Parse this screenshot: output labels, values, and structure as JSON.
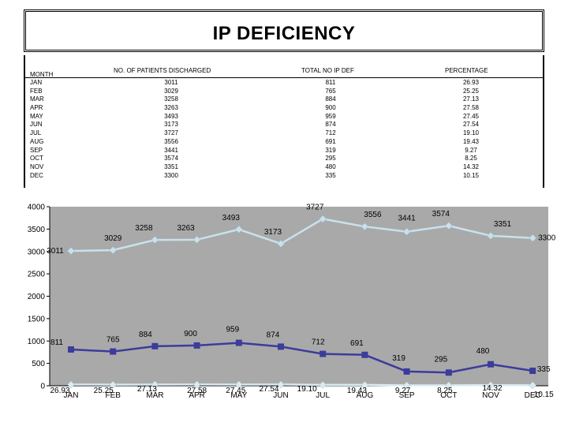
{
  "title": "IP DEFICIENCY",
  "table": {
    "headers": {
      "month": "MONTH",
      "patients": "NO. OF PATIENTS DISCHARGED",
      "ip_def": "TOTAL NO IP DEF",
      "percentage": "PERCENTAGE"
    },
    "rows": [
      {
        "month": "JAN",
        "patients": "3011",
        "ip_def": "811",
        "percentage": "26.93"
      },
      {
        "month": "FEB",
        "patients": "3029",
        "ip_def": "765",
        "percentage": "25.25"
      },
      {
        "month": "MAR",
        "patients": "3258",
        "ip_def": "884",
        "percentage": "27.13"
      },
      {
        "month": "APR",
        "patients": "3263",
        "ip_def": "900",
        "percentage": "27.58"
      },
      {
        "month": "MAY",
        "patients": "3493",
        "ip_def": "959",
        "percentage": "27.45"
      },
      {
        "month": "JUN",
        "patients": "3173",
        "ip_def": "874",
        "percentage": "27.54"
      },
      {
        "month": "JUL",
        "patients": "3727",
        "ip_def": "712",
        "percentage": "19.10"
      },
      {
        "month": "AUG",
        "patients": "3556",
        "ip_def": "691",
        "percentage": "19.43"
      },
      {
        "month": "SEP",
        "patients": "3441",
        "ip_def": "319",
        "percentage": "9.27"
      },
      {
        "month": "OCT",
        "patients": "3574",
        "ip_def": "295",
        "percentage": "8.25"
      },
      {
        "month": "NOV",
        "patients": "3351",
        "ip_def": "480",
        "percentage": "14.32"
      },
      {
        "month": "DEC",
        "patients": "3300",
        "ip_def": "335",
        "percentage": "10.15"
      }
    ]
  },
  "chart_data": {
    "type": "line",
    "categories": [
      "JAN",
      "FEB",
      "MAR",
      "APR",
      "MAY",
      "JUN",
      "JUL",
      "AUG",
      "SEP",
      "OCT",
      "NOV",
      "DEC"
    ],
    "series": [
      {
        "values": [
          3011,
          3029,
          3258,
          3263,
          3493,
          3173,
          3727,
          3556,
          3441,
          3574,
          3351,
          3300
        ],
        "color": "#c8e2ec",
        "marker": "diamond"
      },
      {
        "values": [
          811,
          765,
          884,
          900,
          959,
          874,
          712,
          691,
          319,
          295,
          480,
          335
        ],
        "color": "#3b3c9b",
        "marker": "square"
      },
      {
        "values": [
          26.93,
          25.25,
          27.13,
          27.58,
          27.45,
          27.54,
          19.1,
          19.43,
          9.27,
          8.25,
          14.32,
          10.15
        ],
        "color": "#d8ecf2",
        "marker": "diamond"
      }
    ],
    "yticks": [
      "0",
      "500",
      "1000",
      "1500",
      "2000",
      "2500",
      "3000",
      "3500",
      "4000"
    ],
    "ylim": [
      0,
      4000
    ],
    "plot_bg": "#a9a9a9",
    "grid": false
  }
}
